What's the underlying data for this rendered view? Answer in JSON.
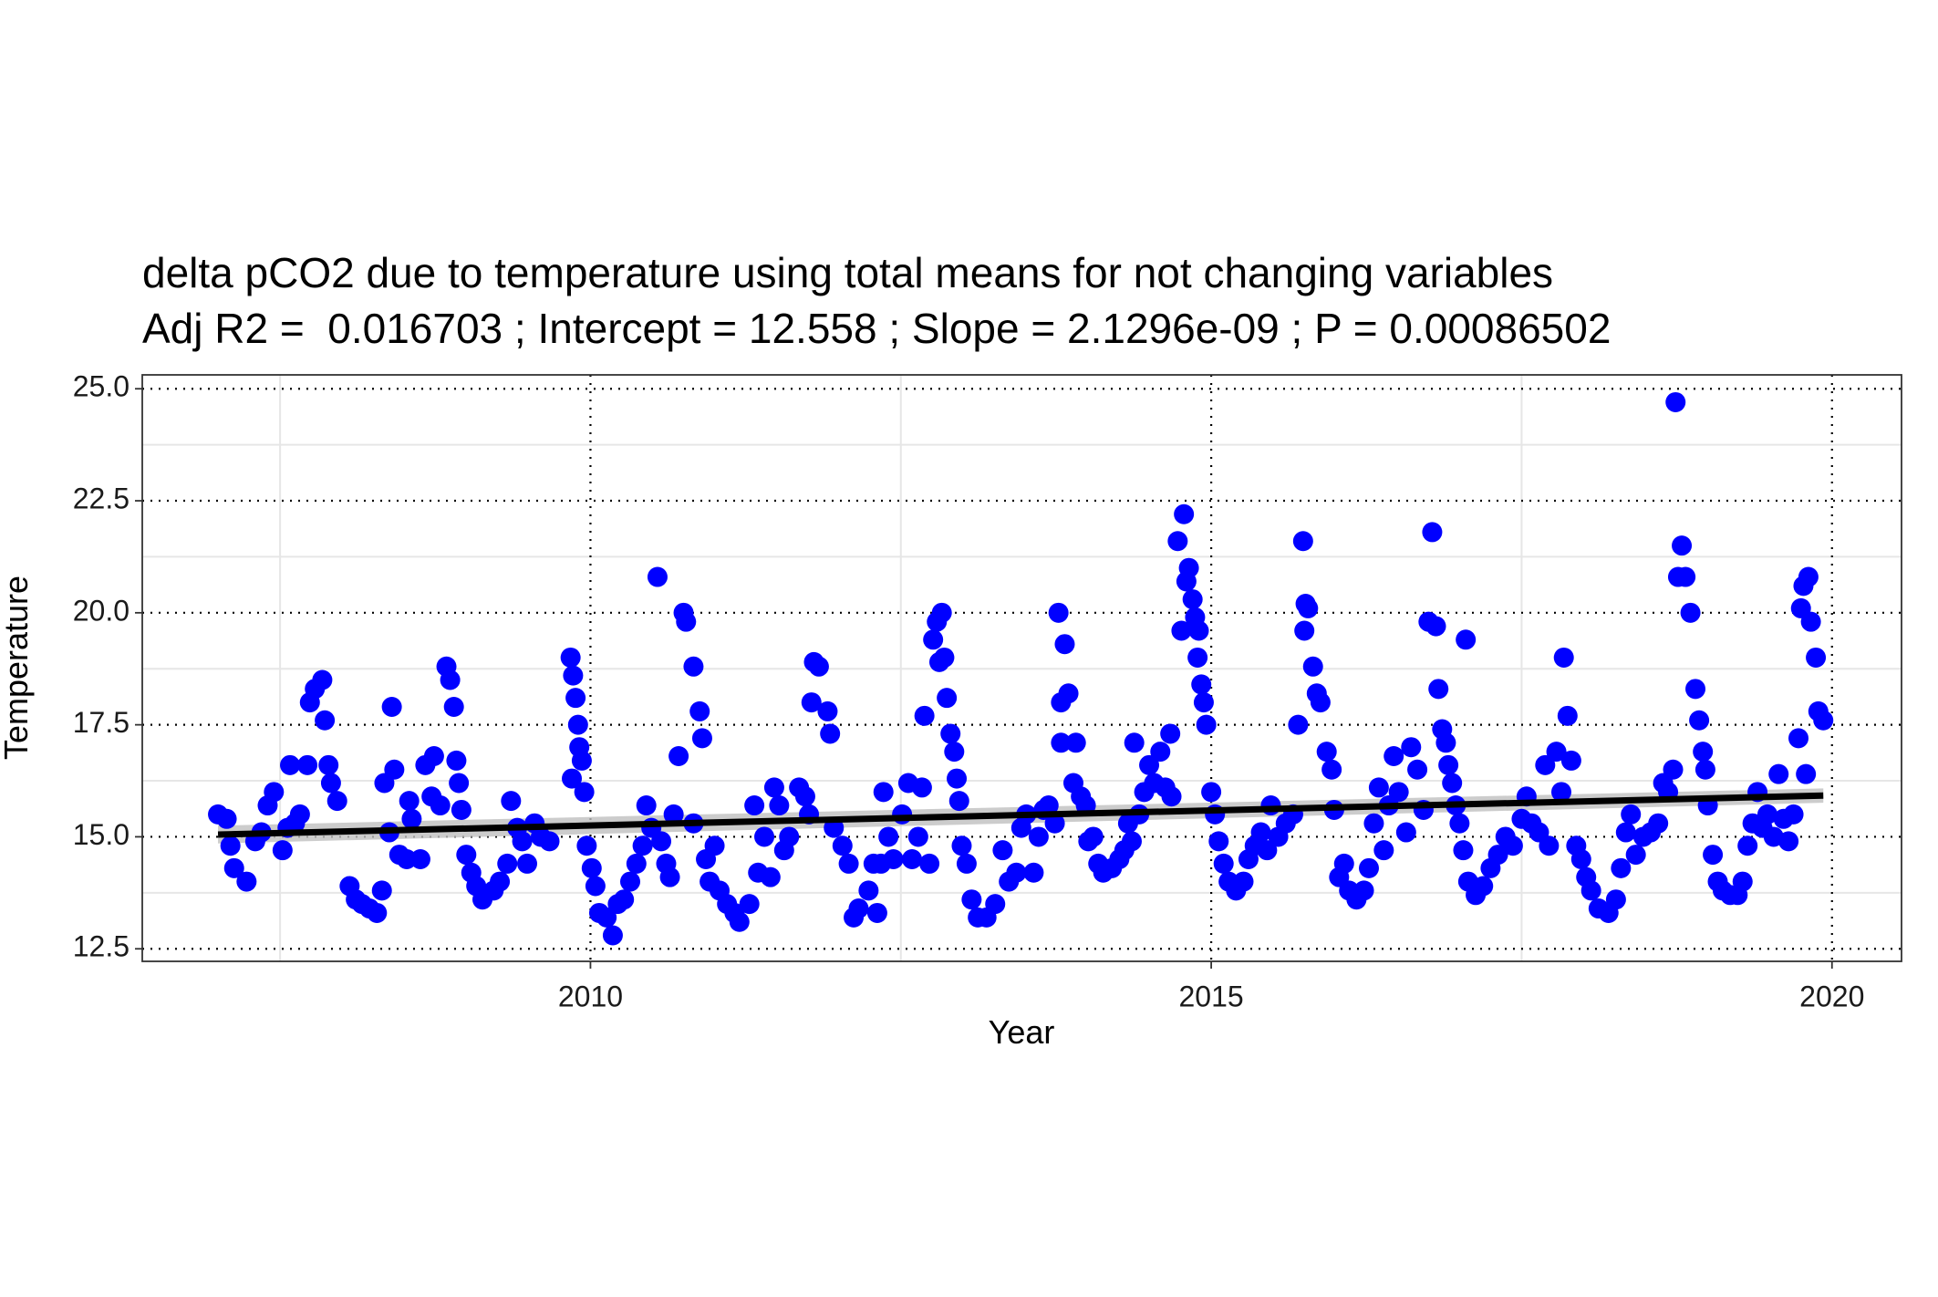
{
  "chart_data": {
    "type": "scatter",
    "title": "delta pCO2 due to temperature using total means for not changing variables",
    "subtitle": "Adj R2 =  0.016703 ; Intercept = 12.558 ; Slope = 2.1296e-09 ; P = 0.00086502",
    "x_label": "Year",
    "y_label": "Temperature",
    "color": "#0000ff",
    "xlim": [
      2006.39,
      2020.56
    ],
    "ylim": [
      12.22,
      25.31
    ],
    "xticks": [
      2010,
      2015,
      2020
    ],
    "yticks": [
      12.5,
      {
        "value": 15,
        "label": "15.0"
      },
      17.5,
      {
        "value": 20,
        "label": "20.0"
      },
      22.5,
      {
        "value": 25,
        "label": "25.0"
      }
    ],
    "xminor": [
      2007.5,
      2012.5,
      2017.5
    ],
    "yminor": [
      13.75,
      16.25,
      18.75,
      21.25,
      23.75
    ],
    "grid": true,
    "x": [
      2007.0,
      2007.07,
      2007.1,
      2007.13,
      2007.23,
      2007.3,
      2007.35,
      2007.4,
      2007.45,
      2007.52,
      2007.56,
      2007.58,
      2007.62,
      2007.66,
      2007.72,
      2007.74,
      2007.78,
      2007.84,
      2007.86,
      2007.89,
      2007.91,
      2007.96,
      2008.06,
      2008.11,
      2008.16,
      2008.22,
      2008.28,
      2008.32,
      2008.34,
      2008.4,
      2008.42,
      2008.38,
      2008.46,
      2008.52,
      2008.54,
      2008.56,
      2008.63,
      2008.67,
      2008.74,
      2008.72,
      2008.79,
      2008.84,
      2008.87,
      2008.9,
      2008.92,
      2008.94,
      2008.96,
      2009.0,
      2009.04,
      2009.08,
      2009.13,
      2009.22,
      2009.27,
      2009.33,
      2009.36,
      2009.41,
      2009.45,
      2009.49,
      2009.55,
      2009.6,
      2009.67,
      2009.84,
      2009.86,
      2009.88,
      2009.9,
      2009.91,
      2009.93,
      2009.85,
      2009.95,
      2009.97,
      2010.01,
      2010.04,
      2010.07,
      2010.13,
      2010.18,
      2010.22,
      2010.27,
      2010.32,
      2010.37,
      2010.42,
      2010.45,
      2010.49,
      2010.54,
      2010.57,
      2010.61,
      2010.64,
      2010.67,
      2010.71,
      2010.75,
      2010.77,
      2010.83,
      2010.88,
      2010.9,
      2010.83,
      2010.93,
      2010.96,
      2011.0,
      2011.04,
      2011.1,
      2011.16,
      2011.2,
      2011.28,
      2011.32,
      2011.35,
      2011.4,
      2011.45,
      2011.48,
      2011.52,
      2011.56,
      2011.6,
      2011.68,
      2011.73,
      2011.76,
      2011.8,
      2011.84,
      2011.78,
      2011.91,
      2011.93,
      2011.96,
      2012.03,
      2012.08,
      2012.12,
      2012.16,
      2012.24,
      2012.28,
      2012.31,
      2012.34,
      2012.36,
      2012.4,
      2012.44,
      2012.51,
      2012.56,
      2012.59,
      2012.64,
      2012.67,
      2012.69,
      2012.73,
      2012.76,
      2012.79,
      2012.83,
      2012.81,
      2012.85,
      2012.87,
      2012.9,
      2012.93,
      2012.95,
      2012.97,
      2012.99,
      2013.03,
      2013.07,
      2013.12,
      2013.19,
      2013.26,
      2013.32,
      2013.37,
      2013.43,
      2013.47,
      2013.51,
      2013.57,
      2013.61,
      2013.65,
      2013.69,
      2013.74,
      2013.77,
      2013.79,
      2013.82,
      2013.85,
      2013.79,
      2013.91,
      2013.89,
      2013.95,
      2013.99,
      2014.01,
      2014.05,
      2014.09,
      2014.13,
      2014.2,
      2014.26,
      2014.3,
      2014.33,
      2014.36,
      2014.38,
      2014.42,
      2014.46,
      2014.5,
      2014.54,
      2014.59,
      2014.63,
      2014.67,
      2014.68,
      2014.73,
      2014.76,
      2014.78,
      2014.8,
      2014.82,
      2014.85,
      2014.87,
      2014.89,
      2014.9,
      2014.92,
      2014.94,
      2014.96,
      2015.0,
      2015.03,
      2015.06,
      2015.1,
      2015.14,
      2015.2,
      2015.26,
      2015.3,
      2015.35,
      2015.4,
      2015.45,
      2015.48,
      2015.54,
      2015.6,
      2015.66,
      2015.7,
      2015.74,
      2015.76,
      2015.78,
      2015.75,
      2015.82,
      2015.85,
      2015.88,
      2015.93,
      2015.97,
      2015.99,
      2016.03,
      2016.07,
      2016.11,
      2016.17,
      2016.23,
      2016.27,
      2016.31,
      2016.35,
      2016.39,
      2016.43,
      2016.47,
      2016.51,
      2016.57,
      2016.61,
      2016.66,
      2016.71,
      2016.75,
      2016.78,
      2016.81,
      2016.83,
      2016.86,
      2016.89,
      2016.91,
      2016.94,
      2016.97,
      2017.0,
      2017.03,
      2017.05,
      2017.07,
      2017.13,
      2017.19,
      2017.25,
      2017.31,
      2017.37,
      2017.43,
      2017.5,
      2017.54,
      2017.58,
      2017.64,
      2017.69,
      2017.72,
      2017.78,
      2017.82,
      2017.84,
      2017.87,
      2017.9,
      2017.94,
      2017.98,
      2018.02,
      2018.06,
      2018.12,
      2018.2,
      2018.26,
      2018.3,
      2018.34,
      2018.38,
      2018.42,
      2018.48,
      2018.54,
      2018.6,
      2018.64,
      2018.68,
      2018.72,
      2018.74,
      2018.76,
      2018.79,
      2018.82,
      2018.86,
      2018.9,
      2018.93,
      2018.96,
      2018.98,
      2019.0,
      2019.04,
      2019.08,
      2019.12,
      2019.18,
      2019.24,
      2019.28,
      2019.32,
      2019.36,
      2019.4,
      2019.44,
      2019.48,
      2019.53,
      2019.57,
      2019.61,
      2019.65,
      2019.69,
      2019.73,
      2019.75,
      2019.77,
      2019.79,
      2019.81,
      2019.83,
      2019.87,
      2019.89,
      2019.93
    ],
    "values": [
      15.5,
      15.4,
      14.8,
      14.3,
      14.0,
      14.9,
      15.1,
      15.7,
      16.0,
      14.7,
      15.2,
      16.6,
      15.3,
      15.5,
      16.6,
      18.0,
      18.3,
      18.5,
      17.6,
      16.6,
      16.2,
      15.8,
      13.9,
      13.6,
      13.5,
      13.4,
      13.3,
      13.8,
      16.2,
      17.9,
      16.5,
      15.1,
      14.6,
      14.5,
      15.8,
      15.4,
      14.5,
      16.6,
      16.8,
      15.9,
      15.7,
      18.8,
      18.5,
      17.9,
      16.7,
      16.2,
      15.6,
      14.6,
      14.2,
      13.9,
      13.6,
      13.8,
      14.0,
      14.4,
      15.8,
      15.2,
      14.9,
      14.4,
      15.3,
      15.0,
      14.9,
      19.0,
      18.6,
      18.1,
      17.5,
      17.0,
      16.7,
      16.3,
      16.0,
      14.8,
      14.3,
      13.9,
      13.3,
      13.2,
      12.8,
      13.5,
      13.6,
      14.0,
      14.4,
      14.8,
      15.7,
      15.2,
      20.8,
      14.9,
      14.4,
      14.1,
      15.5,
      16.8,
      20.0,
      19.8,
      18.8,
      17.8,
      17.2,
      15.3,
      14.5,
      14.0,
      14.8,
      13.8,
      13.5,
      13.3,
      13.1,
      13.5,
      15.7,
      14.2,
      15.0,
      14.1,
      16.1,
      15.7,
      14.7,
      15.0,
      16.1,
      15.9,
      15.5,
      18.9,
      18.8,
      18.0,
      17.8,
      17.3,
      15.2,
      14.8,
      14.4,
      13.2,
      13.4,
      13.8,
      14.4,
      13.3,
      14.4,
      16.0,
      15.0,
      14.5,
      15.5,
      16.2,
      14.5,
      15.0,
      16.1,
      17.7,
      14.4,
      19.4,
      19.8,
      20.0,
      18.9,
      19.0,
      18.1,
      17.3,
      16.9,
      16.3,
      15.8,
      14.8,
      14.4,
      13.6,
      13.2,
      13.2,
      13.5,
      14.7,
      14.0,
      14.2,
      15.2,
      15.5,
      14.2,
      15.0,
      15.6,
      15.7,
      15.3,
      20.0,
      18.0,
      19.3,
      18.2,
      17.1,
      17.1,
      16.2,
      15.9,
      15.7,
      14.9,
      15.0,
      14.4,
      14.2,
      14.3,
      14.5,
      14.7,
      15.3,
      14.9,
      17.1,
      15.5,
      16.0,
      16.6,
      16.2,
      16.9,
      16.1,
      17.3,
      15.9,
      21.6,
      19.6,
      22.2,
      20.7,
      21.0,
      20.3,
      19.9,
      19.0,
      19.6,
      18.4,
      18.0,
      17.5,
      16.0,
      15.5,
      14.9,
      14.4,
      14.0,
      13.8,
      14.0,
      14.5,
      14.8,
      15.1,
      14.7,
      15.7,
      15.0,
      15.3,
      15.5,
      17.5,
      21.6,
      20.2,
      20.1,
      19.6,
      18.8,
      18.2,
      18.0,
      16.9,
      16.5,
      15.6,
      14.1,
      14.4,
      13.8,
      13.6,
      13.8,
      14.3,
      15.3,
      16.1,
      14.7,
      15.7,
      16.8,
      16.0,
      15.1,
      17.0,
      16.5,
      15.6,
      19.8,
      21.8,
      19.7,
      18.3,
      17.4,
      17.1,
      16.6,
      16.2,
      15.7,
      15.3,
      14.7,
      19.4,
      14.0,
      13.7,
      13.9,
      14.3,
      14.6,
      15.0,
      14.8,
      15.4,
      15.9,
      15.3,
      15.1,
      16.6,
      14.8,
      16.9,
      16.0,
      19.0,
      17.7,
      16.7,
      14.8,
      14.5,
      14.1,
      13.8,
      13.4,
      13.3,
      13.6,
      14.3,
      15.1,
      15.5,
      14.6,
      15.0,
      15.1,
      15.3,
      16.2,
      16.0,
      16.5,
      24.7,
      20.8,
      21.5,
      20.8,
      20.0,
      18.3,
      17.6,
      16.9,
      16.5,
      15.7,
      14.6,
      14.0,
      13.8,
      13.7,
      13.7,
      14.0,
      14.8,
      15.3,
      16.0,
      15.2,
      15.5,
      15.0,
      16.4,
      15.4,
      14.9,
      15.5,
      17.2,
      20.1,
      20.6,
      16.4,
      20.8,
      19.8,
      19.0,
      17.8,
      17.6
    ],
    "trend": {
      "x": [
        2007.0,
        2019.93
      ],
      "values": [
        15.05,
        15.92
      ],
      "lower": [
        14.85,
        15.76
      ],
      "upper": [
        15.25,
        16.08
      ],
      "color": "#000000",
      "band_color": "#bfbfbf"
    }
  }
}
